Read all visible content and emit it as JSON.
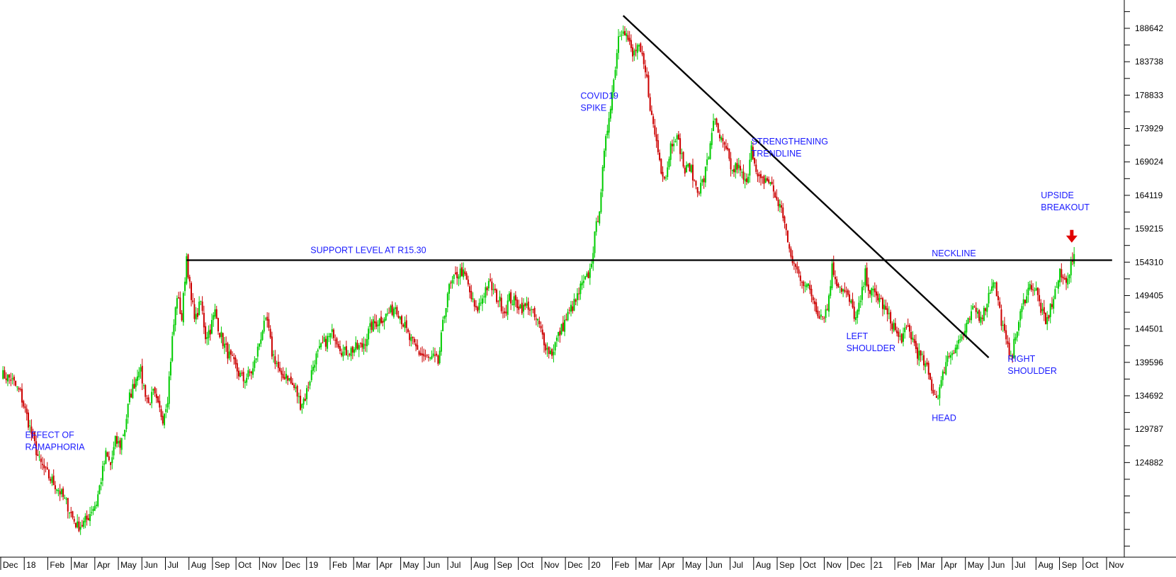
{
  "chart_data": {
    "type": "candlestick",
    "ylim": [
      111000,
      192800
    ],
    "y_ticks": [
      188642,
      183738,
      178833,
      173929,
      169024,
      164119,
      159215,
      154310,
      149405,
      144501,
      139596,
      134692,
      129787,
      124882
    ],
    "x_labels": [
      "Dec",
      "18",
      "Feb",
      "Mar",
      "Apr",
      "May",
      "Jun",
      "Jul",
      "Aug",
      "Sep",
      "Oct",
      "Nov",
      "Dec",
      "19",
      "Feb",
      "Mar",
      "Apr",
      "May",
      "Jun",
      "Jul",
      "Aug",
      "Sep",
      "Oct",
      "Nov",
      "Dec",
      "20",
      "Feb",
      "Mar",
      "Apr",
      "May",
      "Jun",
      "Jul",
      "Aug",
      "Sep",
      "Oct",
      "Nov",
      "Dec",
      "21",
      "Feb",
      "Mar",
      "Apr",
      "May",
      "Jun",
      "Jul",
      "Aug",
      "Sep",
      "Oct",
      "Nov"
    ],
    "up_color": "#00cc00",
    "down_color": "#cc0000",
    "line_color": "#000000",
    "annotation_color": "#1a1aff",
    "arrow_color": "#e00000",
    "price_path": [
      [
        0,
        137800
      ],
      [
        2,
        137200
      ],
      [
        4,
        135000
      ],
      [
        6,
        130000
      ],
      [
        8,
        125000
      ],
      [
        10,
        122800
      ],
      [
        12,
        121000
      ],
      [
        14,
        118500
      ],
      [
        15,
        116800
      ],
      [
        16,
        115500
      ],
      [
        17,
        115800
      ],
      [
        18,
        116500
      ],
      [
        19,
        118000
      ],
      [
        20,
        119000
      ],
      [
        21,
        122500
      ],
      [
        22,
        126000
      ],
      [
        23,
        124500
      ],
      [
        24,
        128000
      ],
      [
        25,
        127500
      ],
      [
        26,
        130000
      ],
      [
        27,
        134500
      ],
      [
        28,
        136500
      ],
      [
        29,
        139000
      ],
      [
        30,
        136000
      ],
      [
        31,
        133500
      ],
      [
        32,
        135000
      ],
      [
        33,
        133000
      ],
      [
        34,
        131500
      ],
      [
        35,
        134500
      ],
      [
        36,
        143000
      ],
      [
        37,
        149500
      ],
      [
        38,
        146000
      ],
      [
        39,
        155200
      ],
      [
        40,
        148500
      ],
      [
        41,
        146000
      ],
      [
        42,
        148500
      ],
      [
        43,
        143500
      ],
      [
        44,
        144500
      ],
      [
        45,
        147000
      ],
      [
        46,
        144000
      ],
      [
        47,
        142000
      ],
      [
        48,
        140500
      ],
      [
        50,
        138000
      ],
      [
        51,
        137000
      ],
      [
        53,
        138500
      ],
      [
        55,
        144500
      ],
      [
        56,
        145500
      ],
      [
        57,
        141000
      ],
      [
        58,
        139500
      ],
      [
        59,
        137000
      ],
      [
        60,
        138000
      ],
      [
        61,
        136500
      ],
      [
        62,
        135500
      ],
      [
        63,
        133500
      ],
      [
        64,
        134500
      ],
      [
        66,
        140000
      ],
      [
        68,
        142500
      ],
      [
        70,
        144000
      ],
      [
        72,
        141000
      ],
      [
        74,
        141500
      ],
      [
        76,
        142000
      ],
      [
        78,
        145000
      ],
      [
        80,
        146000
      ],
      [
        82,
        147000
      ],
      [
        83,
        148000
      ],
      [
        84,
        146500
      ],
      [
        86,
        143000
      ],
      [
        88,
        141000
      ],
      [
        90,
        140000
      ],
      [
        91,
        140200
      ],
      [
        92,
        139500
      ],
      [
        93,
        145000
      ],
      [
        94,
        150000
      ],
      [
        96,
        152500
      ],
      [
        97,
        153000
      ],
      [
        98,
        151500
      ],
      [
        99,
        149000
      ],
      [
        100,
        147000
      ],
      [
        101,
        148500
      ],
      [
        102,
        150500
      ],
      [
        103,
        151000
      ],
      [
        104,
        149500
      ],
      [
        105,
        148500
      ],
      [
        106,
        147000
      ],
      [
        107,
        149000
      ],
      [
        108,
        148500
      ],
      [
        109,
        148000
      ],
      [
        110,
        147500
      ],
      [
        111,
        148000
      ],
      [
        112,
        146500
      ],
      [
        113,
        145500
      ],
      [
        114,
        143500
      ],
      [
        115,
        141500
      ],
      [
        116,
        141000
      ],
      [
        117,
        143000
      ],
      [
        118,
        144500
      ],
      [
        119,
        146000
      ],
      [
        120,
        147500
      ],
      [
        121,
        148500
      ],
      [
        122,
        150500
      ],
      [
        123,
        151500
      ],
      [
        124,
        153000
      ],
      [
        125,
        158000
      ],
      [
        126,
        162500
      ],
      [
        127,
        170000
      ],
      [
        128,
        176000
      ],
      [
        129,
        181000
      ],
      [
        130,
        187500
      ],
      [
        131,
        189000
      ],
      [
        132,
        187000
      ],
      [
        133,
        184500
      ],
      [
        134,
        186000
      ],
      [
        135,
        184000
      ],
      [
        136,
        181000
      ],
      [
        137,
        175500
      ],
      [
        138,
        172000
      ],
      [
        139,
        168000
      ],
      [
        140,
        167000
      ],
      [
        141,
        171500
      ],
      [
        142,
        173000
      ],
      [
        143,
        171000
      ],
      [
        144,
        167500
      ],
      [
        145,
        168500
      ],
      [
        146,
        166000
      ],
      [
        147,
        165000
      ],
      [
        148,
        166500
      ],
      [
        149,
        170000
      ],
      [
        150,
        175500
      ],
      [
        151,
        173000
      ],
      [
        152,
        171500
      ],
      [
        153,
        170000
      ],
      [
        154,
        167500
      ],
      [
        155,
        168500
      ],
      [
        156,
        167000
      ],
      [
        157,
        165500
      ],
      [
        158,
        172000
      ],
      [
        159,
        167000
      ],
      [
        160,
        166000
      ],
      [
        161,
        166500
      ],
      [
        162,
        166000
      ],
      [
        163,
        164000
      ],
      [
        164,
        162500
      ],
      [
        165,
        160500
      ],
      [
        166,
        155500
      ],
      [
        167,
        154000
      ],
      [
        168,
        152500
      ],
      [
        169,
        151500
      ],
      [
        170,
        150500
      ],
      [
        171,
        149000
      ],
      [
        172,
        147000
      ],
      [
        173,
        146500
      ],
      [
        174,
        147500
      ],
      [
        175,
        153500
      ],
      [
        176,
        151500
      ],
      [
        177,
        150500
      ],
      [
        178,
        149500
      ],
      [
        179,
        148000
      ],
      [
        180,
        146000
      ],
      [
        181,
        148500
      ],
      [
        182,
        152500
      ],
      [
        183,
        150000
      ],
      [
        184,
        149500
      ],
      [
        185,
        149000
      ],
      [
        186,
        147500
      ],
      [
        187,
        146000
      ],
      [
        188,
        145000
      ],
      [
        189,
        143000
      ],
      [
        190,
        143500
      ],
      [
        191,
        144500
      ],
      [
        192,
        143000
      ],
      [
        193,
        141000
      ],
      [
        194,
        140000
      ],
      [
        195,
        138500
      ],
      [
        196,
        136000
      ],
      [
        197,
        134500
      ],
      [
        198,
        136500
      ],
      [
        199,
        140000
      ],
      [
        200,
        141000
      ],
      [
        201,
        142000
      ],
      [
        202,
        143000
      ],
      [
        203,
        144000
      ],
      [
        204,
        146000
      ],
      [
        205,
        147500
      ],
      [
        206,
        146500
      ],
      [
        207,
        147000
      ],
      [
        208,
        149500
      ],
      [
        209,
        152000
      ],
      [
        210,
        148500
      ],
      [
        211,
        144500
      ],
      [
        212,
        141500
      ],
      [
        213,
        141000
      ],
      [
        214,
        144500
      ],
      [
        215,
        147500
      ],
      [
        216,
        150000
      ],
      [
        217,
        151000
      ],
      [
        218,
        150000
      ],
      [
        219,
        147500
      ],
      [
        220,
        145000
      ],
      [
        221,
        147500
      ],
      [
        222,
        150000
      ],
      [
        223,
        152500
      ],
      [
        224,
        151500
      ],
      [
        225,
        153000
      ],
      [
        226,
        155500
      ]
    ],
    "support_line": {
      "label": "SUPPORT LEVEL AT R15.30",
      "value": 154600,
      "x_start_bar": 39,
      "x_end_bar": 234
    },
    "trendline": {
      "label_lines": [
        "STRENGTHENING",
        "TRENDLINE"
      ],
      "start": [
        131,
        190500
      ],
      "end": [
        208,
        140300
      ]
    },
    "annotations": [
      {
        "lines": [
          "EFFECT OF",
          "RAMAPHORIA"
        ],
        "bar": 5,
        "value": 128500
      },
      {
        "lines": [
          "COVID19",
          "SPIKE"
        ],
        "bar": 122,
        "value": 178300
      },
      {
        "lines": [
          "LEFT",
          "SHOULDER"
        ],
        "bar": 178,
        "value": 143000
      },
      {
        "lines": [
          "HEAD"
        ],
        "bar": 196,
        "value": 131000
      },
      {
        "lines": [
          "RIGHT",
          "SHOULDER"
        ],
        "bar": 212,
        "value": 139700
      },
      {
        "lines": [
          "NECKLINE"
        ],
        "bar": 196,
        "value": 155200
      },
      {
        "lines": [
          "UPSIDE",
          "BREAKOUT"
        ],
        "bar": 219,
        "value": 163700
      }
    ],
    "breakout_arrow": {
      "bar": 225.5,
      "value": 157800
    }
  }
}
